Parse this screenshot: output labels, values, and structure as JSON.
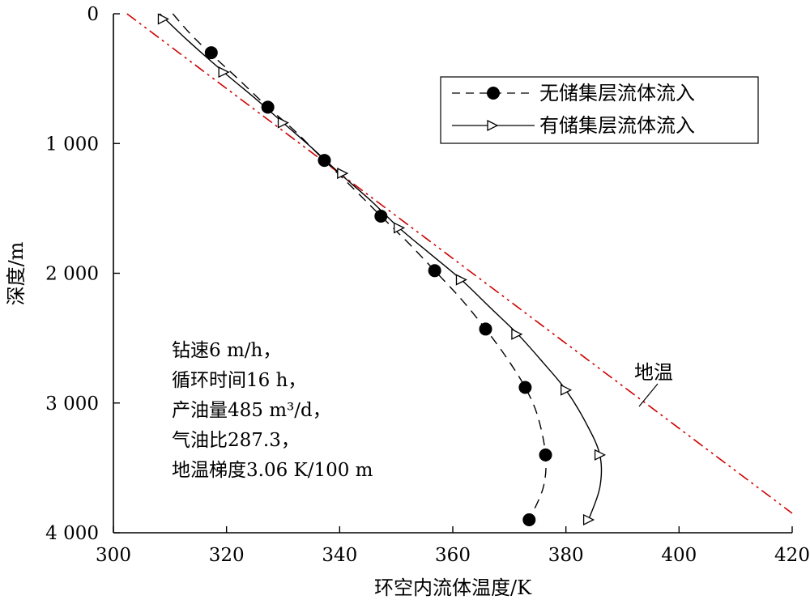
{
  "chart_data": {
    "type": "line",
    "xlabel": "环空内流体温度/K",
    "ylabel": "深度/m",
    "xlim": [
      300,
      420
    ],
    "ylim": [
      0,
      4000
    ],
    "y_inverted": true,
    "x_ticks": [
      300,
      320,
      340,
      360,
      380,
      400,
      420
    ],
    "x_tick_labels": [
      "300",
      "320",
      "340",
      "360",
      "380",
      "400",
      "420"
    ],
    "y_ticks": [
      0,
      1000,
      2000,
      3000,
      4000
    ],
    "y_tick_labels": [
      "0",
      "1 000",
      "2 000",
      "3 000",
      "4 000"
    ],
    "grid": false,
    "legend_position": "top-right",
    "series": [
      {
        "name": "无储集层流体流入",
        "style": "dashed",
        "marker": "filled-circle",
        "color": "#000000",
        "curve": [
          [
            310.5,
            0
          ],
          [
            313.5,
            150
          ],
          [
            317,
            300
          ],
          [
            322,
            500
          ],
          [
            327.3,
            720
          ],
          [
            332,
            900
          ],
          [
            337.3,
            1130
          ],
          [
            342.5,
            1350
          ],
          [
            347.3,
            1560
          ],
          [
            352,
            1760
          ],
          [
            356.8,
            1980
          ],
          [
            361.5,
            2200
          ],
          [
            365.8,
            2430
          ],
          [
            369.5,
            2650
          ],
          [
            372.8,
            2880
          ],
          [
            375,
            3100
          ],
          [
            376.4,
            3400
          ],
          [
            376,
            3650
          ],
          [
            373.5,
            3900
          ]
        ],
        "markers": [
          [
            317.3,
            300
          ],
          [
            327.3,
            720
          ],
          [
            337.3,
            1130
          ],
          [
            347.3,
            1560
          ],
          [
            356.8,
            1980
          ],
          [
            365.8,
            2430
          ],
          [
            372.8,
            2880
          ],
          [
            376.4,
            3400
          ],
          [
            373.5,
            3900
          ]
        ]
      },
      {
        "name": "有储集层流体流入",
        "style": "solid",
        "marker": "open-triangle-right",
        "color": "#000000",
        "curve": [
          [
            308.2,
            0
          ],
          [
            313,
            200
          ],
          [
            319.5,
            450
          ],
          [
            325,
            650
          ],
          [
            330,
            840
          ],
          [
            335,
            1030
          ],
          [
            340,
            1230
          ],
          [
            345.5,
            1440
          ],
          [
            350.5,
            1650
          ],
          [
            356,
            1850
          ],
          [
            361.5,
            2050
          ],
          [
            366.5,
            2260
          ],
          [
            371.5,
            2470
          ],
          [
            376,
            2690
          ],
          [
            380,
            2900
          ],
          [
            383.5,
            3150
          ],
          [
            386,
            3400
          ],
          [
            386,
            3650
          ],
          [
            384,
            3900
          ]
        ],
        "markers": [
          [
            308.8,
            40
          ],
          [
            319.5,
            450
          ],
          [
            330,
            840
          ],
          [
            340.5,
            1230
          ],
          [
            350.5,
            1650
          ],
          [
            361.5,
            2050
          ],
          [
            371.3,
            2470
          ],
          [
            380,
            2900
          ],
          [
            386,
            3400
          ],
          [
            384,
            3900
          ]
        ]
      },
      {
        "name": "地温",
        "style": "dash-dot-dot",
        "marker": "none",
        "color": "#cc0000",
        "curve": [
          [
            302.4,
            0
          ],
          [
            420,
            3850
          ]
        ]
      }
    ],
    "annotations": {
      "geotherm_label": "地温",
      "conditions": [
        "钻速6 m/h，",
        "循环时间16 h，",
        "产油量485 m³/d，",
        "气油比287.3，",
        "地温梯度3.06 K/100 m"
      ]
    }
  }
}
